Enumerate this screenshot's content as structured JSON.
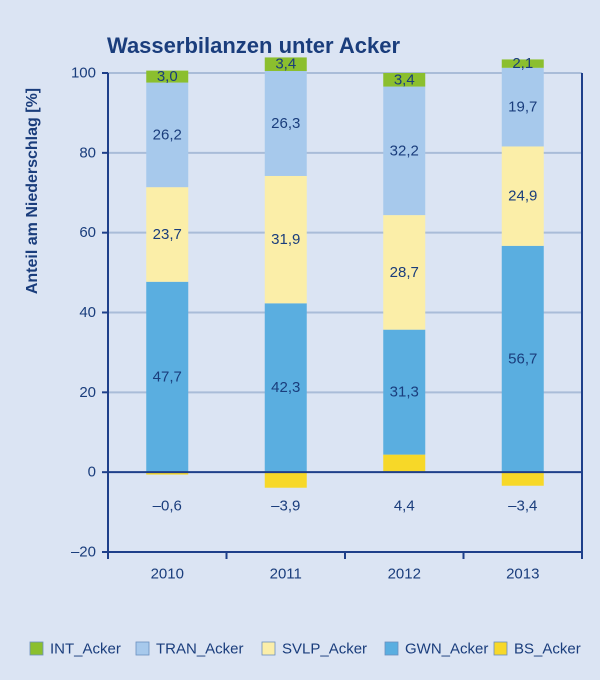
{
  "colors": {
    "background": "#dbe4f3",
    "axis": "#1e3f8a",
    "grid": "#a9bcd8",
    "text": "#1a3d7c",
    "INT_Acker": "#8bbf2e",
    "TRAN_Acker": "#a7c9ec",
    "SVLP_Acker": "#fbeea8",
    "GWN_Acker": "#5aaee0",
    "BS_Acker": "#f7d828"
  },
  "chart_data": {
    "type": "bar",
    "stacked": true,
    "title": "Wasserbilanzen unter Acker",
    "xlabel": "",
    "ylabel": "Anteil am Niederschlag [%]",
    "ylim": [
      -20,
      100
    ],
    "yticks": [
      100,
      80,
      60,
      40,
      20,
      0,
      -20
    ],
    "ytick_labels": [
      "100",
      "80",
      "60",
      "40",
      "20",
      "0",
      "–20"
    ],
    "grid": true,
    "legend_position": "bottom",
    "categories": [
      "2010",
      "2011",
      "2012",
      "2013"
    ],
    "series": [
      {
        "name": "BS_Acker",
        "values": [
          -0.6,
          -3.9,
          4.4,
          -3.4
        ],
        "labels": [
          "–0,6",
          "–3,9",
          "4,4",
          "–3,4"
        ]
      },
      {
        "name": "GWN_Acker",
        "values": [
          47.7,
          42.3,
          31.3,
          56.7
        ],
        "labels": [
          "47,7",
          "42,3",
          "31,3",
          "56,7"
        ]
      },
      {
        "name": "SVLP_Acker",
        "values": [
          23.7,
          31.9,
          28.7,
          24.9
        ],
        "labels": [
          "23,7",
          "31,9",
          "28,7",
          "24,9"
        ]
      },
      {
        "name": "TRAN_Acker",
        "values": [
          26.2,
          26.3,
          32.2,
          19.7
        ],
        "labels": [
          "26,2",
          "26,3",
          "32,2",
          "19,7"
        ]
      },
      {
        "name": "INT_Acker",
        "values": [
          3.0,
          3.4,
          3.4,
          2.1
        ],
        "labels": [
          "3,0",
          "3,4",
          "3,4",
          "2,1"
        ]
      }
    ],
    "legend": [
      "INT_Acker",
      "TRAN_Acker",
      "SVLP_Acker",
      "GWN_Acker",
      "BS_Acker"
    ]
  }
}
